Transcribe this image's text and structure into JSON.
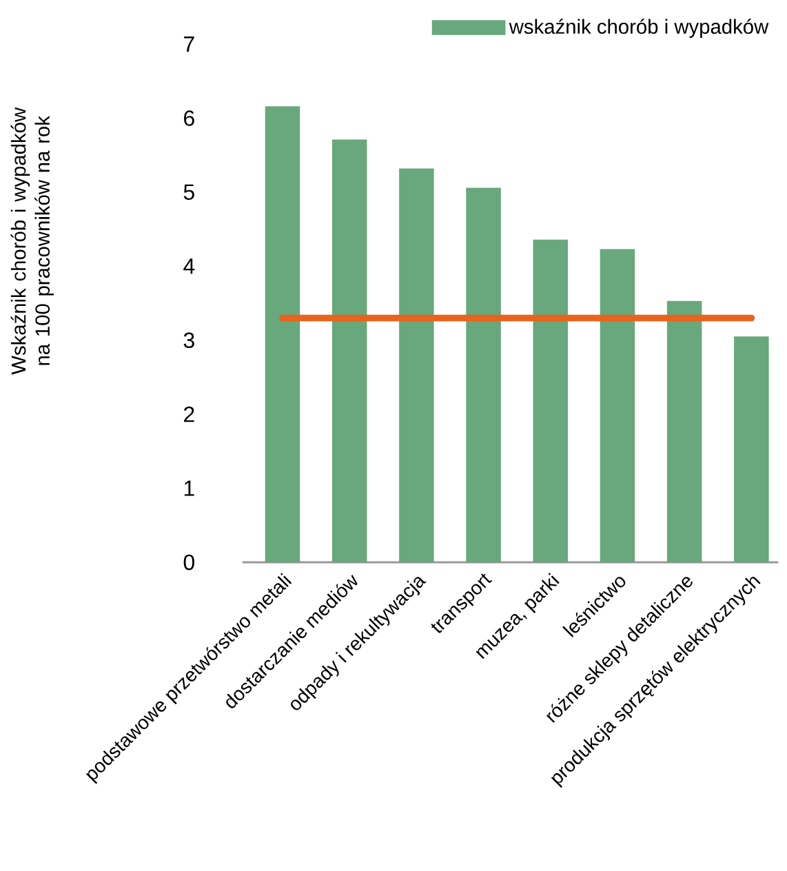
{
  "chart_data": {
    "type": "bar",
    "ylabel": "Wskaźnik chorób i wypadków na 100 pracowników na rok",
    "categories": [
      "podstawowe przetwórstwo metali",
      "dostarczanie mediów",
      "odpady i rekultywacja",
      "transport",
      "muzea, parki",
      "leśnictwo",
      "różne sklepy detaliczne",
      "produkcja sprzętów elektrycznych"
    ],
    "series": [
      {
        "name": "wskaźnik chorób i wypadków",
        "color": "#68a87c",
        "values": [
          6.16,
          5.71,
          5.32,
          5.06,
          4.36,
          4.23,
          3.53,
          3.05
        ]
      },
      {
        "type": "line",
        "color": "#e8641c",
        "values": [
          3.3,
          3.3,
          3.3,
          3.3,
          3.3,
          3.3,
          3.3,
          3.3
        ]
      }
    ],
    "ylim": [
      0,
      7
    ],
    "yticks": [
      0,
      1,
      2,
      3,
      4,
      5,
      6,
      7
    ],
    "legend": "top right"
  }
}
